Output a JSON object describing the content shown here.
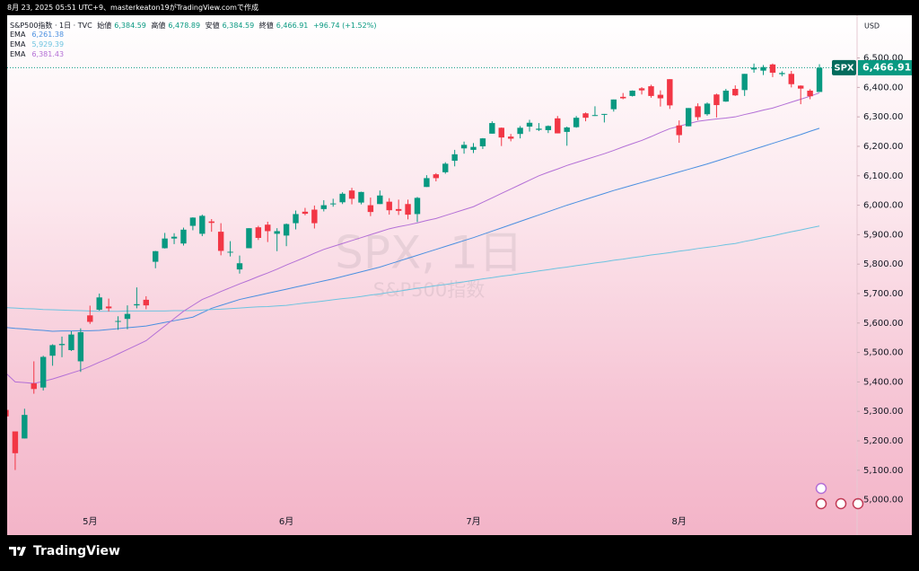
{
  "credit": "8月 23, 2025 05:51 UTC+9、masterkeaton19がTradingView.comで作成",
  "footer": {
    "brand": "TradingView"
  },
  "chart_data": {
    "type": "candlestick",
    "header": {
      "symbol": "S&P500指数 · 1日 · TVC",
      "open_label": "始値",
      "open": "6,384.59",
      "high_label": "高値",
      "high": "6,478.89",
      "low_label": "安値",
      "low": "6,384.59",
      "close_label": "終値",
      "close": "6,466.91",
      "change": "+96.74 (+1.52%)"
    },
    "currency": "USD",
    "symbol_label": "SPX",
    "watermark": {
      "title": "SPX, 1日",
      "subtitle": "S&P500指数"
    },
    "last_price": {
      "value": 6466.91,
      "label": "6,466.91"
    },
    "up_color": "#089981",
    "down_color": "#f23645",
    "grid": false,
    "ylim": [
      4880,
      6645
    ],
    "yticks": [
      {
        "value": 5000,
        "label": "5,000.00"
      },
      {
        "value": 5100,
        "label": "5,100.00"
      },
      {
        "value": 5200,
        "label": "5,200.00"
      },
      {
        "value": 5300,
        "label": "5,300.00"
      },
      {
        "value": 5400,
        "label": "5,400.00"
      },
      {
        "value": 5500,
        "label": "5,500.00"
      },
      {
        "value": 5600,
        "label": "5,600.00"
      },
      {
        "value": 5700,
        "label": "5,700.00"
      },
      {
        "value": 5800,
        "label": "5,800.00"
      },
      {
        "value": 5900,
        "label": "5,900.00"
      },
      {
        "value": 6000,
        "label": "6,000.00"
      },
      {
        "value": 6100,
        "label": "6,100.00"
      },
      {
        "value": 6200,
        "label": "6,200.00"
      },
      {
        "value": 6300,
        "label": "6,300.00"
      },
      {
        "value": 6400,
        "label": "6,400.00"
      },
      {
        "value": 6500,
        "label": "6,500.00"
      }
    ],
    "categories": [
      null,
      null,
      null,
      null,
      null,
      null,
      null,
      null,
      null,
      "5月",
      null,
      null,
      null,
      null,
      null,
      null,
      null,
      null,
      null,
      null,
      null,
      null,
      null,
      null,
      null,
      null,
      null,
      null,
      null,
      null,
      "6月",
      null,
      null,
      null,
      null,
      null,
      null,
      null,
      null,
      null,
      null,
      null,
      null,
      null,
      null,
      null,
      null,
      null,
      null,
      null,
      "7月",
      null,
      null,
      null,
      null,
      null,
      null,
      null,
      null,
      null,
      null,
      null,
      null,
      null,
      null,
      null,
      null,
      null,
      null,
      null,
      null,
      null,
      "8月",
      null,
      null,
      null,
      null,
      null,
      null,
      null,
      null,
      null,
      null,
      null,
      null,
      null,
      null,
      null
    ],
    "ohlc": {
      "open": [
        5305,
        5232,
        5208,
        5395,
        5381,
        5489,
        5525,
        5508,
        5470,
        5626,
        5645,
        5656,
        5605,
        5614,
        5660,
        5679,
        5808,
        5854,
        5887,
        5870,
        5930,
        5903,
        5945,
        5910,
        5841,
        5782,
        5854,
        5925,
        5934,
        5903,
        5897,
        5939,
        5978,
        5985,
        5987,
        6005,
        6010,
        6050,
        6009,
        6000,
        6004,
        6012,
        5987,
        6004,
        5970,
        6062,
        6105,
        6112,
        6151,
        6193,
        6188,
        6200,
        6243,
        6263,
        6233,
        6242,
        6267,
        6256,
        6255,
        6295,
        6249,
        6265,
        6312,
        6304,
        6307,
        6326,
        6368,
        6371,
        6397,
        6404,
        6375,
        6428,
        6271,
        6268,
        6336,
        6309,
        6376,
        6352,
        6395,
        6391,
        6461,
        6457,
        6478,
        6445,
        6446,
        6406,
        6389,
        6384.59
      ],
      "high": [
        5329,
        5232,
        5309,
        5470,
        5489,
        5528,
        5554,
        5572,
        5582,
        5659,
        5700,
        5683,
        5623,
        5660,
        5721,
        5691,
        5845,
        5906,
        5905,
        5924,
        5959,
        5968,
        5953,
        5939,
        5878,
        5829,
        5922,
        5930,
        5944,
        5922,
        5938,
        5982,
        5991,
        5999,
        6017,
        6022,
        6044,
        6059,
        6046,
        6026,
        6050,
        6024,
        6019,
        6019,
        6028,
        6102,
        6109,
        6146,
        6188,
        6216,
        6211,
        6228,
        6285,
        6264,
        6242,
        6269,
        6290,
        6279,
        6271,
        6303,
        6267,
        6303,
        6315,
        6336,
        6310,
        6359,
        6381,
        6390,
        6401,
        6409,
        6390,
        6428,
        6288,
        6330,
        6346,
        6349,
        6379,
        6395,
        6407,
        6446,
        6481,
        6476,
        6481,
        6455,
        6456,
        6407,
        6394,
        6478.89
      ],
      "low": [
        5255,
        5101,
        5208,
        5360,
        5371,
        5455,
        5484,
        5505,
        5434,
        5597,
        5642,
        5639,
        5577,
        5579,
        5650,
        5647,
        5786,
        5853,
        5868,
        5863,
        5915,
        5895,
        5910,
        5830,
        5826,
        5768,
        5854,
        5882,
        5875,
        5844,
        5861,
        5918,
        5966,
        5921,
        5979,
        5995,
        6004,
        6003,
        6003,
        5963,
        6004,
        5968,
        5967,
        5952,
        5943,
        6062,
        6081,
        6107,
        6132,
        6175,
        6177,
        6191,
        6243,
        6201,
        6217,
        6227,
        6250,
        6252,
        6245,
        6244,
        6202,
        6263,
        6285,
        6303,
        6281,
        6318,
        6360,
        6369,
        6376,
        6365,
        6335,
        6327,
        6212,
        6268,
        6289,
        6304,
        6298,
        6351,
        6371,
        6371,
        6450,
        6442,
        6435,
        6438,
        6400,
        6343,
        6360,
        6384.59
      ],
      "close": [
        5283,
        5158,
        5288,
        5376,
        5485,
        5525,
        5529,
        5561,
        5569,
        5604,
        5687,
        5650,
        5607,
        5631,
        5664,
        5660,
        5844,
        5887,
        5893,
        5917,
        5958,
        5964,
        5940,
        5845,
        5842,
        5803,
        5922,
        5889,
        5912,
        5912,
        5936,
        5970,
        5971,
        5939,
        6000,
        6006,
        6039,
        6022,
        6045,
        5977,
        6033,
        5983,
        5981,
        5968,
        6025,
        6092,
        6092,
        6141,
        6173,
        6205,
        6198,
        6227,
        6279,
        6230,
        6226,
        6263,
        6280,
        6260,
        6269,
        6244,
        6264,
        6297,
        6297,
        6306,
        6310,
        6359,
        6363,
        6389,
        6390,
        6371,
        6363,
        6339,
        6238,
        6330,
        6299,
        6345,
        6340,
        6389,
        6373,
        6446,
        6467,
        6469,
        6450,
        6449,
        6411,
        6396,
        6370,
        6466.91
      ]
    },
    "series": [
      {
        "name": "EMA",
        "legend_value": "6,261.38",
        "color": "#4a8fe0",
        "values": [
          5585,
          5582,
          5580,
          5577,
          5575,
          5572,
          5573,
          5573,
          5574,
          5574,
          5575,
          5578,
          5581,
          5584,
          5587,
          5590,
          5596,
          5602,
          5608,
          5614,
          5620,
          5635,
          5650,
          5660,
          5670,
          5680,
          5687,
          5694,
          5701,
          5708,
          5715,
          5722,
          5729,
          5736,
          5743,
          5750,
          5758,
          5766,
          5774,
          5782,
          5790,
          5800,
          5810,
          5820,
          5830,
          5840,
          5850,
          5860,
          5870,
          5880,
          5890,
          5901,
          5912,
          5923,
          5934,
          5945,
          5956,
          5967,
          5978,
          5989,
          6000,
          6010,
          6020,
          6030,
          6040,
          6050,
          6059,
          6068,
          6077,
          6086,
          6095,
          6104,
          6113,
          6122,
          6131,
          6140,
          6150,
          6160,
          6170,
          6180,
          6190,
          6200,
          6210,
          6220,
          6230,
          6240,
          6251,
          6261.38
        ]
      },
      {
        "name": "EMA",
        "legend_value": "5,929.39",
        "color": "#6cc3e0",
        "values": [
          5652,
          5651,
          5649,
          5648,
          5646,
          5645,
          5644,
          5643,
          5642,
          5641,
          5640,
          5640,
          5640,
          5641,
          5641,
          5641,
          5641,
          5641,
          5642,
          5642,
          5642,
          5644,
          5646,
          5647,
          5649,
          5651,
          5653,
          5655,
          5656,
          5658,
          5660,
          5664,
          5668,
          5671,
          5675,
          5679,
          5683,
          5686,
          5690,
          5695,
          5699,
          5704,
          5708,
          5713,
          5718,
          5722,
          5727,
          5731,
          5736,
          5740,
          5745,
          5750,
          5754,
          5759,
          5763,
          5768,
          5772,
          5777,
          5781,
          5786,
          5790,
          5795,
          5799,
          5804,
          5808,
          5813,
          5817,
          5822,
          5826,
          5831,
          5835,
          5839,
          5844,
          5848,
          5853,
          5857,
          5861,
          5866,
          5870,
          5877,
          5883,
          5890,
          5896,
          5903,
          5910,
          5916,
          5923,
          5929.39
        ]
      },
      {
        "name": "EMA",
        "legend_value": "6,381.43",
        "color": "#b36fd6",
        "values": [
          5430,
          5400,
          5398,
          5395,
          5402,
          5410,
          5420,
          5430,
          5440,
          5453,
          5467,
          5480,
          5495,
          5510,
          5525,
          5540,
          5565,
          5590,
          5615,
          5640,
          5660,
          5680,
          5693,
          5707,
          5720,
          5733,
          5745,
          5758,
          5770,
          5783,
          5797,
          5810,
          5823,
          5837,
          5850,
          5860,
          5870,
          5880,
          5890,
          5900,
          5910,
          5920,
          5927,
          5933,
          5940,
          5948,
          5955,
          5965,
          5975,
          5985,
          5995,
          6010,
          6025,
          6040,
          6055,
          6070,
          6085,
          6100,
          6112,
          6123,
          6135,
          6145,
          6155,
          6165,
          6175,
          6186,
          6198,
          6209,
          6220,
          6233,
          6247,
          6260,
          6268,
          6277,
          6285,
          6289,
          6293,
          6296,
          6300,
          6308,
          6315,
          6323,
          6330,
          6340,
          6350,
          6360,
          6370,
          6381.43
        ]
      }
    ]
  }
}
